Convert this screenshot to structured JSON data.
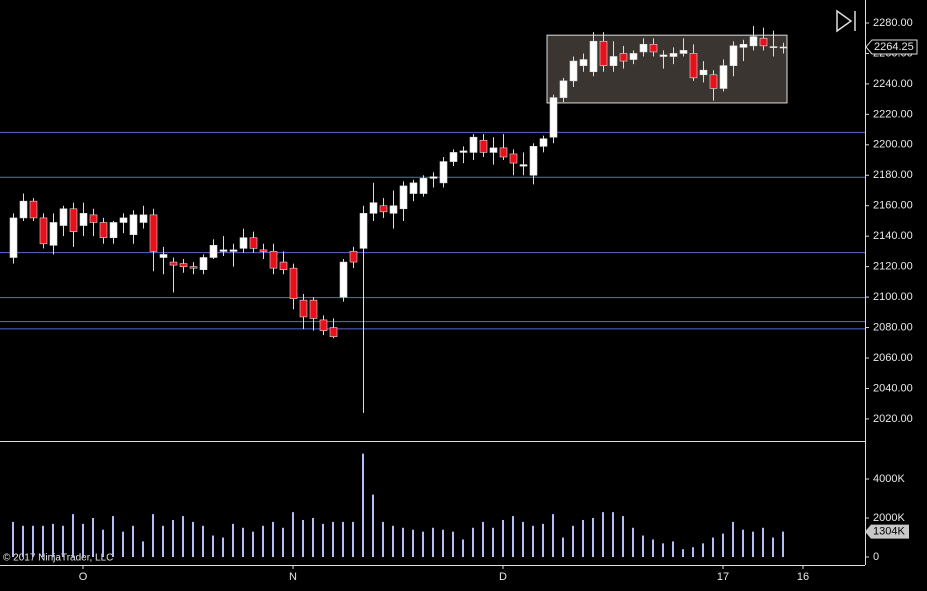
{
  "chart_data": {
    "type": "candlestick",
    "open": [
      2126,
      2152,
      2163,
      2152,
      2134,
      2147,
      2158,
      2147,
      2154,
      2149,
      2139,
      2149,
      2141,
      2149,
      2154,
      2126,
      2123,
      2122,
      2120,
      2118,
      2126,
      2130,
      2130,
      2132,
      2139,
      2131,
      2130,
      2123,
      2119,
      2098,
      2098,
      2085,
      2080,
      2100,
      2130,
      2132,
      2155,
      2160,
      2155,
      2158,
      2168,
      2168,
      2178,
      2175,
      2189,
      2195,
      2195,
      2203,
      2195,
      2198,
      2194,
      2186,
      2180,
      2199,
      2205,
      2231,
      2242,
      2252,
      2248,
      2268,
      2252,
      2260,
      2256,
      2261,
      2266,
      2258,
      2258,
      2260,
      2260,
      2246,
      2246,
      2237,
      2252,
      2264,
      2265,
      2270,
      2264,
      2264.25
    ],
    "high": [
      2155,
      2168,
      2165,
      2155,
      2155,
      2160,
      2162,
      2162,
      2158,
      2152,
      2150,
      2155,
      2157,
      2160,
      2158,
      2133,
      2126,
      2125,
      2123,
      2128,
      2138,
      2140,
      2135,
      2145,
      2143,
      2135,
      2135,
      2130,
      2122,
      2102,
      2100,
      2088,
      2086,
      2125,
      2133,
      2160,
      2175,
      2165,
      2170,
      2176,
      2177,
      2180,
      2182,
      2192,
      2197,
      2199,
      2207,
      2207,
      2205,
      2207,
      2197,
      2195,
      2201,
      2206,
      2233,
      2244,
      2258,
      2260,
      2274,
      2274,
      2268,
      2265,
      2262,
      2270,
      2270,
      2262,
      2264,
      2270,
      2266,
      2255,
      2249,
      2256,
      2268,
      2269,
      2278,
      2277,
      2275,
      2267
    ],
    "low": [
      2122,
      2150,
      2150,
      2132,
      2128,
      2140,
      2133,
      2140,
      2140,
      2135,
      2135,
      2142,
      2135,
      2145,
      2117,
      2115,
      2103,
      2116,
      2115,
      2115,
      2125,
      2127,
      2120,
      2129,
      2129,
      2125,
      2115,
      2115,
      2092,
      2079,
      2078,
      2075,
      2073,
      2097,
      2119,
      2024,
      2150,
      2152,
      2145,
      2150,
      2163,
      2166,
      2172,
      2172,
      2186,
      2188,
      2190,
      2192,
      2187,
      2190,
      2180,
      2180,
      2174,
      2195,
      2201,
      2228,
      2238,
      2248,
      2245,
      2248,
      2248,
      2250,
      2253,
      2258,
      2258,
      2250,
      2253,
      2258,
      2242,
      2241,
      2229,
      2235,
      2245,
      2255,
      2262,
      2262,
      2258,
      2260
    ],
    "close": [
      2152,
      2163,
      2152,
      2135,
      2149,
      2158,
      2143,
      2155,
      2149,
      2139,
      2149,
      2152,
      2154,
      2154,
      2130,
      2128,
      2121,
      2120,
      2119,
      2126,
      2134,
      2131,
      2131,
      2139,
      2132,
      2130,
      2119,
      2118,
      2099,
      2087,
      2086,
      2078,
      2074,
      2123,
      2123,
      2155,
      2162,
      2156,
      2160,
      2173,
      2175,
      2178,
      2179,
      2189,
      2195,
      2196,
      2205,
      2195,
      2198,
      2192,
      2188,
      2187,
      2199,
      2204,
      2231,
      2242,
      2255,
      2256,
      2268,
      2252,
      2258,
      2255,
      2260,
      2266,
      2261,
      2259,
      2260,
      2262,
      2244,
      2249,
      2237,
      2252,
      2265,
      2266,
      2271,
      2265,
      2264.5,
      2264.25
    ],
    "up_color": "#ffffff",
    "down_color": "#e8101a",
    "ylim": [
      2005.5,
      2295.1
    ],
    "yticks": [
      {
        "value": 2020,
        "label": "2020.00"
      },
      {
        "value": 2040,
        "label": "2040.00"
      },
      {
        "value": 2060,
        "label": "2060.00"
      },
      {
        "value": 2080,
        "label": "2080.00"
      },
      {
        "value": 2100,
        "label": "2100.00"
      },
      {
        "value": 2120,
        "label": "2120.00"
      },
      {
        "value": 2140,
        "label": "2140.00"
      },
      {
        "value": 2160,
        "label": "2160.00"
      },
      {
        "value": 2180,
        "label": "2180.00"
      },
      {
        "value": 2200,
        "label": "2200.00"
      },
      {
        "value": 2220,
        "label": "2220.00"
      },
      {
        "value": 2240,
        "label": "2240.00"
      },
      {
        "value": 2260,
        "label": "2260.00"
      },
      {
        "value": 2280,
        "label": "2280.00"
      }
    ],
    "last_price": 2264.25,
    "xlim": [
      -1.3,
      85.2
    ],
    "xticks": [
      {
        "value": 7,
        "label": "O"
      },
      {
        "value": 28,
        "label": "N"
      },
      {
        "value": 49,
        "label": "D"
      },
      {
        "value": 71,
        "label": "17"
      },
      {
        "value": 79,
        "label": "16"
      }
    ],
    "hlines": [
      2208.5,
      2179,
      2129.5,
      2100,
      2084.25,
      2079.5
    ],
    "hline_color": "#5868d8",
    "rectangle": {
      "from": 53.4,
      "to": 77.4,
      "top": 2272,
      "bottom": 2227.5
    },
    "volume": {
      "values": [
        1800,
        1600,
        1600,
        1600,
        1700,
        1600,
        2200,
        1700,
        2000,
        1400,
        2100,
        1300,
        1600,
        800,
        2200,
        1600,
        1900,
        2100,
        1800,
        1600,
        1100,
        1000,
        1700,
        1500,
        1300,
        1600,
        1800,
        1500,
        2300,
        1900,
        2000,
        1700,
        1800,
        1800,
        1800,
        5300,
        3200,
        1800,
        1600,
        1500,
        1400,
        1300,
        1500,
        1400,
        1300,
        900,
        1500,
        1800,
        1500,
        1900,
        2100,
        1800,
        1600,
        1700,
        2200,
        1000,
        1600,
        1900,
        2000,
        2300,
        2300,
        2100,
        1500,
        1100,
        900,
        700,
        800,
        400,
        500,
        700,
        1000,
        1200,
        1800,
        1400,
        1300,
        1500,
        1000,
        1304
      ],
      "value_labels": [
        null,
        null,
        null,
        null,
        null,
        null,
        null,
        null,
        null,
        null,
        null,
        null,
        null,
        null,
        null,
        null,
        null,
        null,
        null,
        null,
        null,
        null,
        null,
        null,
        null,
        null,
        null,
        null,
        null,
        null,
        null,
        null,
        null,
        null,
        null,
        null,
        null,
        null,
        null,
        null,
        null,
        null,
        null,
        null,
        null,
        null,
        null,
        null,
        null,
        null,
        null,
        null,
        null,
        null,
        null,
        null,
        null,
        null,
        null,
        null,
        null,
        null,
        null,
        null,
        null,
        null,
        null,
        null,
        null,
        null,
        null,
        null,
        null,
        null,
        null,
        null,
        null,
        "1304K"
      ],
      "color": "#b4bcf4",
      "ylim": [
        -410,
        5950
      ],
      "yticks": [
        0,
        {
          "value": 2000,
          "label": "2000K"
        },
        {
          "value": 4000,
          "label": "4000K"
        }
      ]
    },
    "copyright": "© 2017 NinjaTrader, LLC"
  }
}
